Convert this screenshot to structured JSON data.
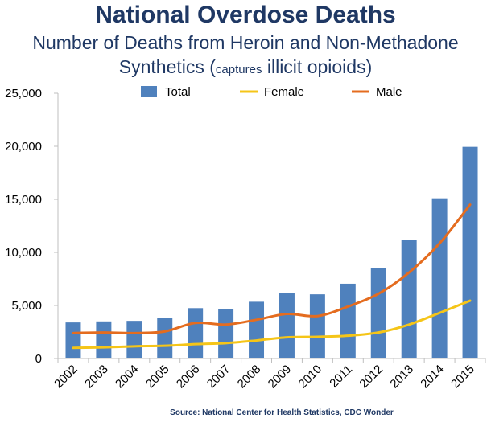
{
  "title": "National Overdose Deaths",
  "subtitle_main": "Number of Deaths from Heroin and Non-Methadone",
  "subtitle_line2_a": "Synthetics (",
  "subtitle_small": "captures",
  "subtitle_line2_b": " illicit opioids)",
  "source": "Source: National Center for Health Statistics, CDC Wonder",
  "colors": {
    "title": "#1f3864",
    "total": "#4f81bd",
    "female": "#f5c518",
    "male": "#e46c1f",
    "axis": "#bfbfbf",
    "text": "#000000"
  },
  "chart_data": {
    "type": "bar",
    "title": "National Overdose Deaths",
    "subtitle": "Number of Deaths from Heroin and Non-Methadone Synthetics (captures illicit opioids)",
    "xlabel": "",
    "ylabel": "",
    "ylim": [
      0,
      25000
    ],
    "yticks": [
      0,
      5000,
      10000,
      15000,
      20000,
      25000
    ],
    "ytick_labels": [
      "0",
      "5,000",
      "10,000",
      "15,000",
      "20,000",
      "25,000"
    ],
    "grid": false,
    "legend_position": "top",
    "categories": [
      "2002",
      "2003",
      "2004",
      "2005",
      "2006",
      "2007",
      "2008",
      "2009",
      "2010",
      "2011",
      "2012",
      "2013",
      "2014",
      "2015"
    ],
    "series": [
      {
        "name": "Total",
        "type": "bar",
        "color": "#4f81bd",
        "values": [
          3400,
          3500,
          3550,
          3800,
          4750,
          4650,
          5350,
          6200,
          6050,
          7050,
          8550,
          11200,
          15100,
          19950
        ]
      },
      {
        "name": "Female",
        "type": "line",
        "color": "#f5c518",
        "values": [
          1000,
          1050,
          1150,
          1200,
          1350,
          1450,
          1700,
          2000,
          2050,
          2150,
          2450,
          3200,
          4300,
          5450
        ]
      },
      {
        "name": "Male",
        "type": "line",
        "color": "#e46c1f",
        "values": [
          2400,
          2450,
          2400,
          2550,
          3350,
          3200,
          3650,
          4200,
          4000,
          4900,
          6100,
          8100,
          10850,
          14500
        ]
      }
    ]
  }
}
